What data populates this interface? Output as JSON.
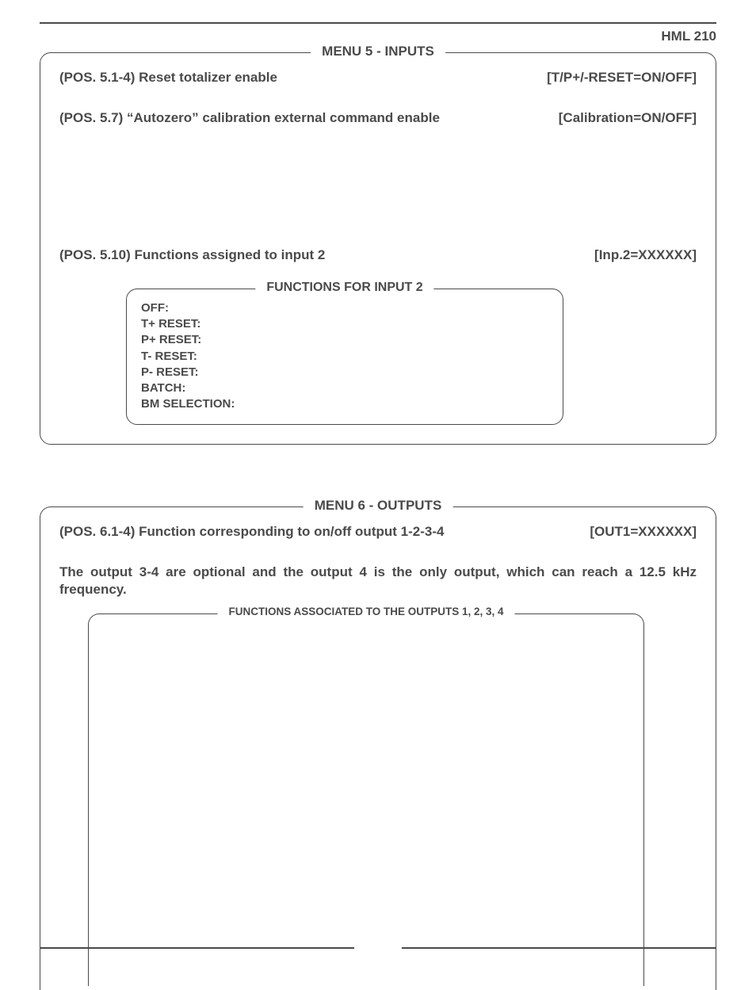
{
  "header": {
    "doc_id": "HML 210"
  },
  "menu5": {
    "title": "MENU 5 - INPUTS",
    "rows": [
      {
        "left": "(POS. 5.1-4) Reset totalizer enable",
        "right": "[T/P+/-RESET=ON/OFF]"
      },
      {
        "left": "(POS. 5.7) “Autozero” calibration external command enable",
        "right": "[Calibration=ON/OFF]"
      },
      {
        "left": "(POS. 5.10) Functions assigned to input 2",
        "right": "[Inp.2=XXXXXX]"
      }
    ],
    "inner": {
      "title": "FUNCTIONS FOR INPUT 2",
      "items": [
        "OFF:",
        "T+ RESET:",
        "P+ RESET:",
        "T- RESET:",
        "P- RESET:",
        "BATCH:",
        "BM SELECTION:"
      ]
    }
  },
  "menu6": {
    "title": "MENU 6 - OUTPUTS",
    "rows": [
      {
        "left": "(POS. 6.1-4) Function corresponding to on/off output 1-2-3-4",
        "right": "[OUT1=XXXXXX]"
      }
    ],
    "note": "The output 3-4 are optional and the output 4 is the only output, which can reach a 12.5 kHz frequency.",
    "inner": {
      "title": "FUNCTIONS ASSOCIATED TO THE OUTPUTS 1, 2, 3, 4"
    }
  }
}
